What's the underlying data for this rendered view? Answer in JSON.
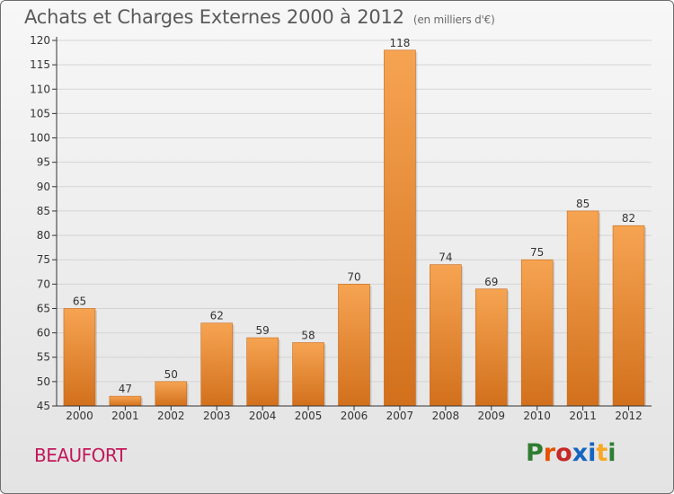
{
  "header": {
    "title": "Achats et Charges Externes 2000 à 2012",
    "unit": "(en milliers d'€)"
  },
  "footer": {
    "city": "BEAUFORT",
    "logo": "Proxiti",
    "logo_colors": [
      "#2e7d32",
      "#e65100",
      "#c62828",
      "#1565c0",
      "#1565c0",
      "#f9a825",
      "#2e7d32"
    ]
  },
  "colors": {
    "bar_light": "#f6a452",
    "bar_dark": "#d2701c",
    "axis": "#333333",
    "grid": "#d4d4d4",
    "city": "#c2185b"
  },
  "chart_data": {
    "type": "bar",
    "categories": [
      "2000",
      "2001",
      "2002",
      "2003",
      "2004",
      "2005",
      "2006",
      "2007",
      "2008",
      "2009",
      "2010",
      "2011",
      "2012"
    ],
    "values": [
      65,
      47,
      50,
      62,
      59,
      58,
      70,
      118,
      74,
      69,
      75,
      85,
      82
    ],
    "ylim": [
      45,
      120
    ],
    "yticks": [
      45,
      50,
      55,
      60,
      65,
      70,
      75,
      80,
      85,
      90,
      95,
      100,
      105,
      110,
      115,
      120
    ],
    "grid": true,
    "data_labels": true
  }
}
